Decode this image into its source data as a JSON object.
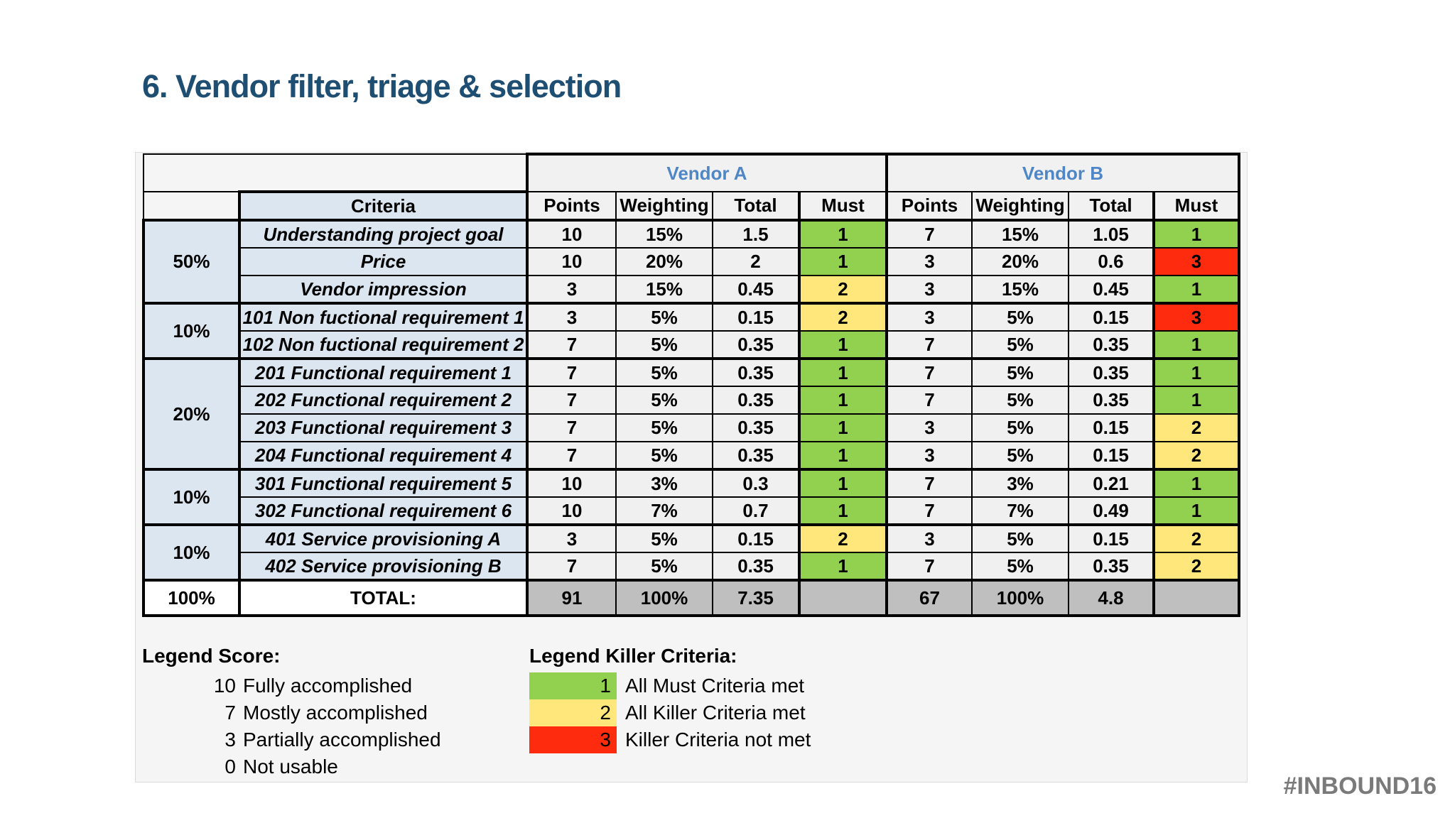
{
  "page_title": "6. Vendor filter, triage & selection",
  "footer": {
    "hashtag": "#INBOUND16"
  },
  "colors": {
    "title_blue": "#1F4E73",
    "vendor_blue": "#4F86C6",
    "must": {
      "1": "#92D050",
      "2": "#FFE77C",
      "3": "#FF2B0F"
    },
    "total_gray": "#BFBFBF",
    "criteria_bg": "#DCE6F1"
  },
  "table": {
    "criteria_header": "Criteria",
    "vendors": [
      "Vendor A",
      "Vendor B"
    ],
    "sub_headers": [
      "Points",
      "Weighting",
      "Total",
      "Must"
    ],
    "groups": [
      {
        "weight": "50%",
        "span": 3
      },
      {
        "weight": "10%",
        "span": 2
      },
      {
        "weight": "20%",
        "span": 4
      },
      {
        "weight": "10%",
        "span": 2
      },
      {
        "weight": "10%",
        "span": 2
      }
    ],
    "rows": [
      {
        "criteria": "Understanding project goal",
        "a": [
          "10",
          "15%",
          "1.5",
          "1"
        ],
        "b": [
          "7",
          "15%",
          "1.05",
          "1"
        ]
      },
      {
        "criteria": "Price",
        "a": [
          "10",
          "20%",
          "2",
          "1"
        ],
        "b": [
          "3",
          "20%",
          "0.6",
          "3"
        ]
      },
      {
        "criteria": "Vendor impression",
        "a": [
          "3",
          "15%",
          "0.45",
          "2"
        ],
        "b": [
          "3",
          "15%",
          "0.45",
          "1"
        ]
      },
      {
        "criteria": "101 Non fuctional requirement 1",
        "a": [
          "3",
          "5%",
          "0.15",
          "2"
        ],
        "b": [
          "3",
          "5%",
          "0.15",
          "3"
        ]
      },
      {
        "criteria": "102 Non fuctional requirement 2",
        "a": [
          "7",
          "5%",
          "0.35",
          "1"
        ],
        "b": [
          "7",
          "5%",
          "0.35",
          "1"
        ]
      },
      {
        "criteria": "201 Functional requirement 1",
        "a": [
          "7",
          "5%",
          "0.35",
          "1"
        ],
        "b": [
          "7",
          "5%",
          "0.35",
          "1"
        ]
      },
      {
        "criteria": "202 Functional requirement 2",
        "a": [
          "7",
          "5%",
          "0.35",
          "1"
        ],
        "b": [
          "7",
          "5%",
          "0.35",
          "1"
        ]
      },
      {
        "criteria": "203 Functional requirement 3",
        "a": [
          "7",
          "5%",
          "0.35",
          "1"
        ],
        "b": [
          "3",
          "5%",
          "0.15",
          "2"
        ]
      },
      {
        "criteria": "204 Functional requirement 4",
        "a": [
          "7",
          "5%",
          "0.35",
          "1"
        ],
        "b": [
          "3",
          "5%",
          "0.15",
          "2"
        ]
      },
      {
        "criteria": "301 Functional requirement 5",
        "a": [
          "10",
          "3%",
          "0.3",
          "1"
        ],
        "b": [
          "7",
          "3%",
          "0.21",
          "1"
        ]
      },
      {
        "criteria": "302 Functional requirement 6",
        "a": [
          "10",
          "7%",
          "0.7",
          "1"
        ],
        "b": [
          "7",
          "7%",
          "0.49",
          "1"
        ]
      },
      {
        "criteria": "401 Service provisioning A",
        "a": [
          "3",
          "5%",
          "0.15",
          "2"
        ],
        "b": [
          "3",
          "5%",
          "0.15",
          "2"
        ]
      },
      {
        "criteria": "402 Service provisioning B",
        "a": [
          "7",
          "5%",
          "0.35",
          "1"
        ],
        "b": [
          "7",
          "5%",
          "0.35",
          "2"
        ]
      }
    ],
    "total_row": {
      "weight": "100%",
      "label": "TOTAL:",
      "a": [
        "91",
        "100%",
        "7.35"
      ],
      "b": [
        "67",
        "100%",
        "4.8"
      ]
    }
  },
  "legend_score": {
    "title": "Legend Score:",
    "items": [
      {
        "score": "10",
        "label": "Fully accomplished"
      },
      {
        "score": "7",
        "label": "Mostly accomplished"
      },
      {
        "score": "3",
        "label": "Partially accomplished"
      },
      {
        "score": "0",
        "label": "Not usable"
      }
    ]
  },
  "legend_killer": {
    "title": "Legend Killer Criteria:",
    "items": [
      {
        "level": "1",
        "label": "All Must Criteria met"
      },
      {
        "level": "2",
        "label": "All Killer Criteria met"
      },
      {
        "level": "3",
        "label": "Killer Criteria not met"
      }
    ]
  }
}
